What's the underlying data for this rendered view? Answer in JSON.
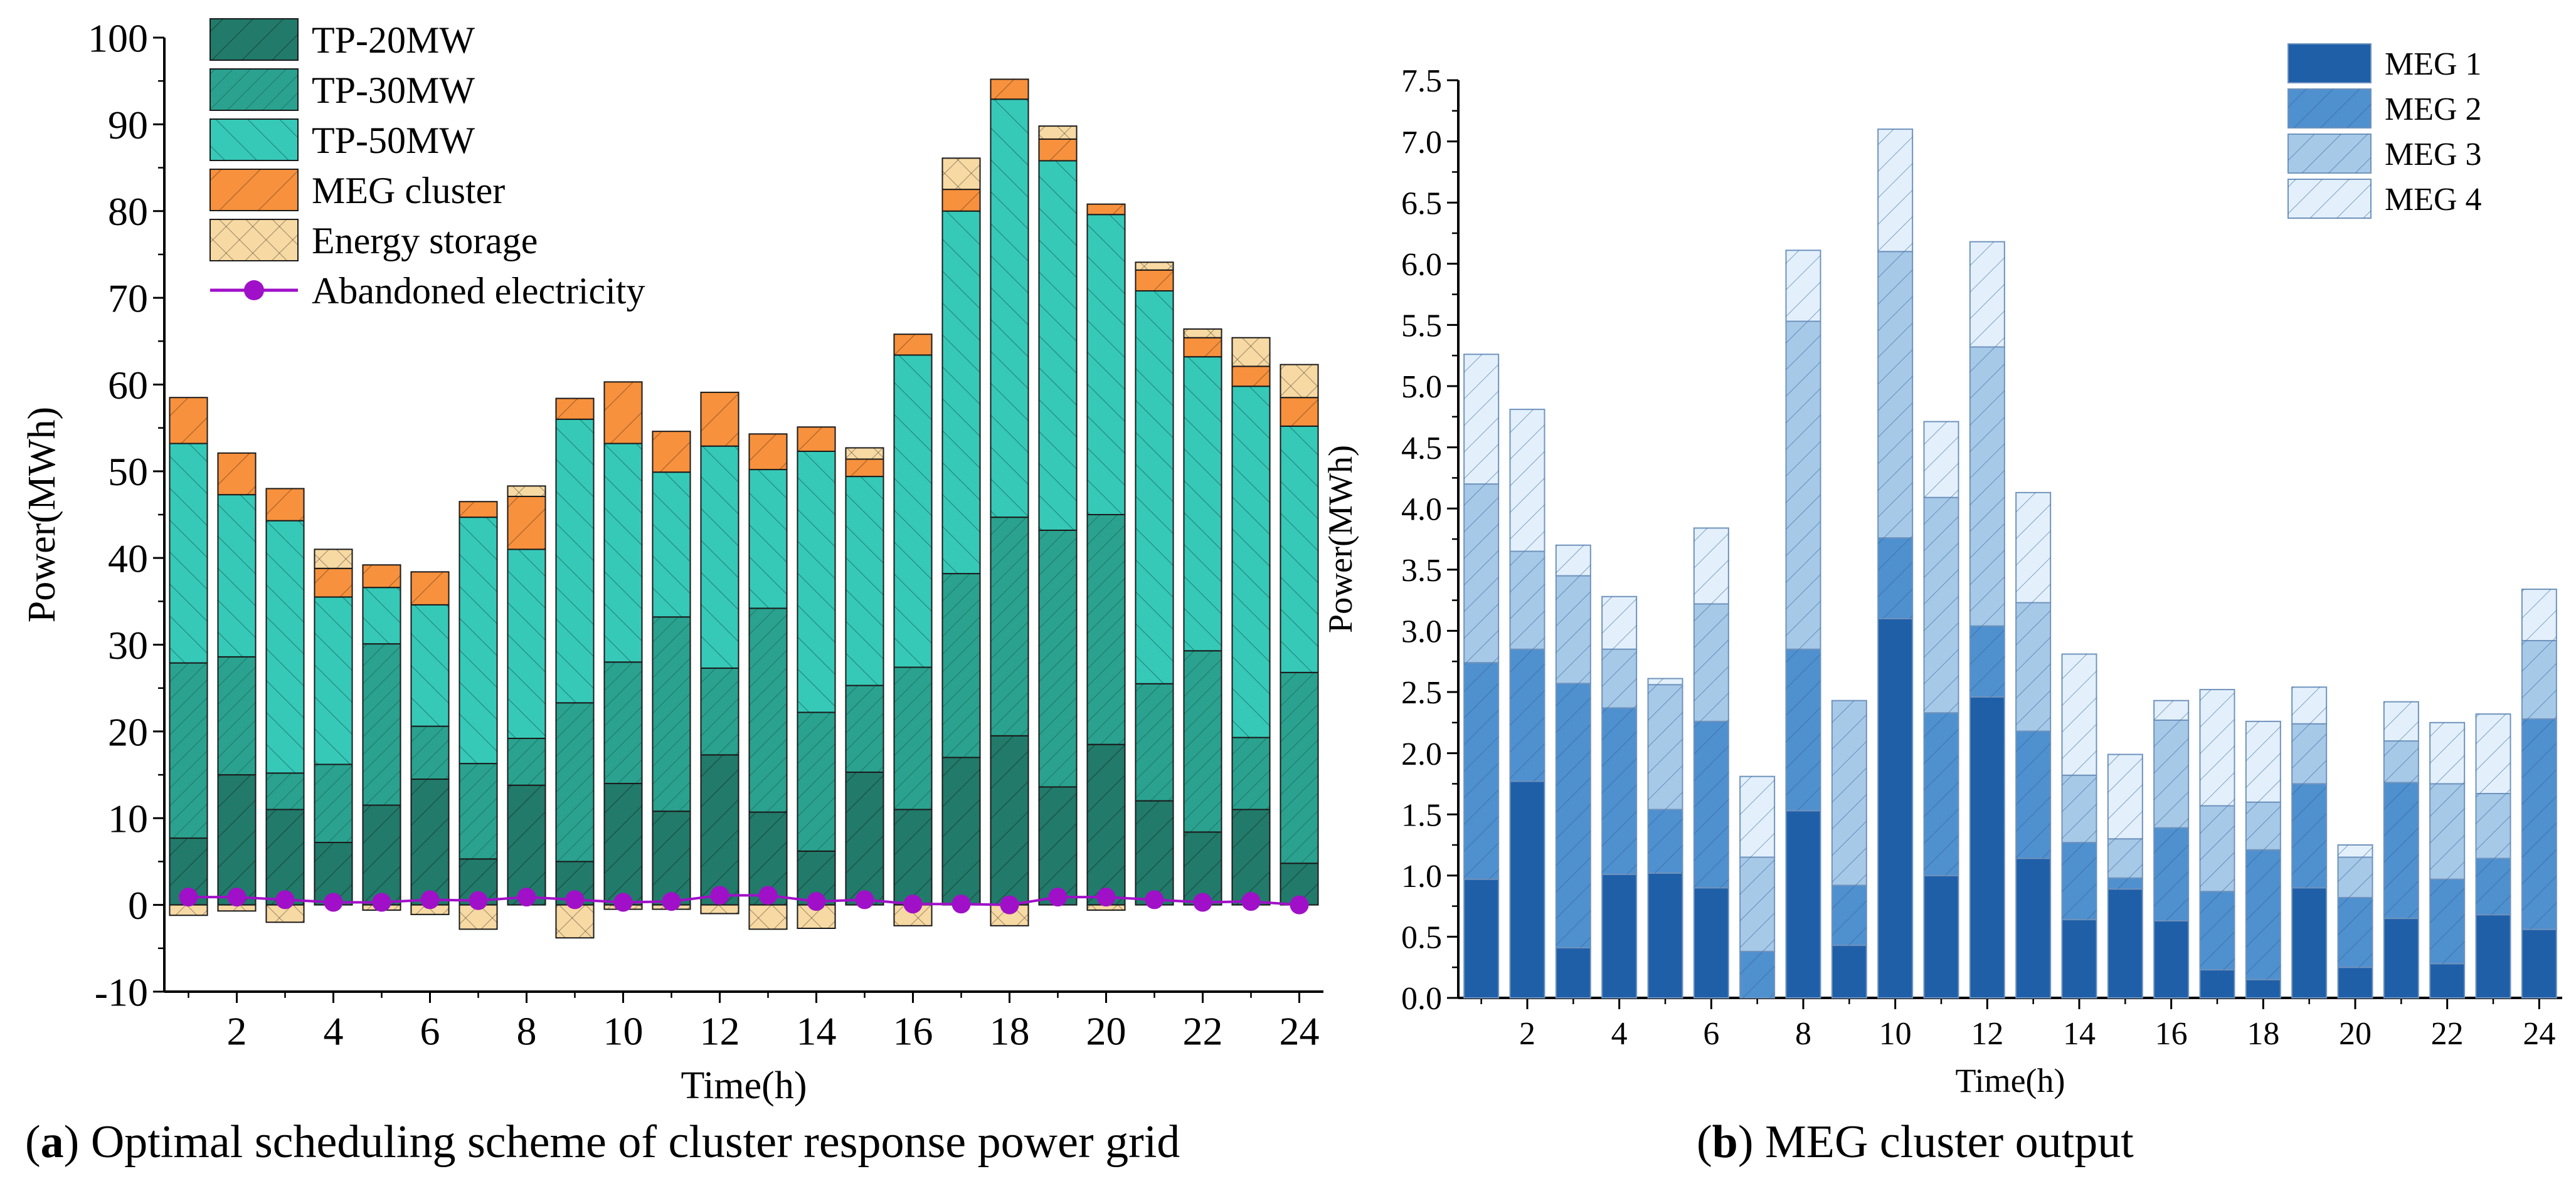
{
  "captions": {
    "a": {
      "paren_open": "(",
      "letter": "a",
      "paren_close": ")",
      "text": " Optimal scheduling scheme of cluster response power grid"
    },
    "b": {
      "paren_open": "(",
      "letter": "b",
      "paren_close": ")",
      "text": " MEG cluster output"
    }
  },
  "chart_data": [
    {
      "type": "bar",
      "stacked": true,
      "title": "",
      "xlabel": "Time(h)",
      "ylabel": "Power(MWh)",
      "ylim": [
        -10,
        100
      ],
      "yticks": [
        -10,
        0,
        10,
        20,
        30,
        40,
        50,
        60,
        70,
        80,
        90,
        100
      ],
      "xticks": [
        2,
        4,
        6,
        8,
        10,
        12,
        14,
        16,
        18,
        20,
        22,
        24
      ],
      "categories": [
        1,
        2,
        3,
        4,
        5,
        6,
        7,
        8,
        9,
        10,
        11,
        12,
        13,
        14,
        15,
        16,
        17,
        18,
        19,
        20,
        21,
        22,
        23,
        24
      ],
      "legend_position": "top-left",
      "series": [
        {
          "name": "TP-20MW",
          "color": "#227a6a",
          "hatch": "diag-right",
          "values": [
            7.7,
            15,
            11,
            7.2,
            11.5,
            14.5,
            5.3,
            13.8,
            5,
            14,
            10.8,
            17.3,
            10.7,
            6.2,
            15.3,
            11,
            17,
            19.5,
            13.6,
            18.5,
            12,
            8.4,
            11,
            4.8
          ]
        },
        {
          "name": "TP-30MW",
          "color": "#2aa28f",
          "hatch": "diag-right-dense",
          "values": [
            20.2,
            13.6,
            4.2,
            9,
            18.6,
            6.1,
            11,
            5.4,
            18.3,
            14,
            22.4,
            10,
            23.5,
            16,
            10,
            16.4,
            21.2,
            25.2,
            29.6,
            26.5,
            13.5,
            20.9,
            8.3,
            22
          ]
        },
        {
          "name": "TP-50MW",
          "color": "#36c9b8",
          "hatch": "diag-left",
          "values": [
            25.3,
            18.7,
            29.1,
            19.3,
            6.5,
            14,
            28.4,
            21.8,
            32.7,
            25.2,
            16.7,
            25.6,
            16,
            30.1,
            24.1,
            36,
            41.8,
            48.2,
            42.6,
            34.6,
            45.3,
            33.9,
            40.5,
            28.4
          ]
        },
        {
          "name": "MEG cluster",
          "color": "#f7913d",
          "hatch": "diag-right-wide",
          "values": [
            5.3,
            4.8,
            3.7,
            3.3,
            2.6,
            3.8,
            1.8,
            6.1,
            2.4,
            7.1,
            4.7,
            6.2,
            4.1,
            2.8,
            2,
            2.4,
            2.5,
            2.3,
            2.5,
            1.2,
            2.4,
            2.2,
            2.3,
            3.3
          ]
        },
        {
          "name": "Energy storage",
          "color": "#f7d9a3",
          "hatch": "cross",
          "values": [
            -1.2,
            -0.7,
            -2,
            2.2,
            -0.6,
            -1.1,
            -2.8,
            1.2,
            -3.8,
            -0.5,
            -0.5,
            -1,
            -2.8,
            -2.7,
            1.3,
            -2.4,
            3.6,
            -2.4,
            1.5,
            -0.6,
            0.9,
            1,
            3.3,
            3.8
          ]
        },
        {
          "name": "Abandoned electricity",
          "color": "#a010c8",
          "type": "line",
          "marker": "circle",
          "values": [
            0.9,
            0.9,
            0.6,
            0.3,
            0.3,
            0.6,
            0.5,
            0.9,
            0.6,
            0.3,
            0.4,
            1.1,
            1.1,
            0.4,
            0.6,
            0.1,
            0.1,
            0,
            0.9,
            0.9,
            0.6,
            0.3,
            0.4,
            0
          ]
        }
      ]
    },
    {
      "type": "bar",
      "stacked": true,
      "title": "",
      "xlabel": "Time(h)",
      "ylabel": "Power(MWh)",
      "ylim": [
        0,
        7.5
      ],
      "yticks": [
        "0.0",
        "0.5",
        "1.0",
        "1.5",
        "2.0",
        "2.5",
        "3.0",
        "3.5",
        "4.0",
        "4.5",
        "5.0",
        "5.5",
        "6.0",
        "6.5",
        "7.0",
        "7.5"
      ],
      "xticks": [
        2,
        4,
        6,
        8,
        10,
        12,
        14,
        16,
        18,
        20,
        22,
        24
      ],
      "categories": [
        1,
        2,
        3,
        4,
        5,
        6,
        7,
        8,
        9,
        10,
        11,
        12,
        13,
        14,
        15,
        16,
        17,
        18,
        19,
        20,
        21,
        22,
        23,
        24
      ],
      "legend_position": "top-right",
      "series": [
        {
          "name": "MEG 1",
          "color": "#1f5fa8",
          "hatch": "none",
          "values": [
            0.97,
            1.77,
            0.41,
            1.01,
            1.02,
            0.9,
            0,
            1.53,
            0.43,
            3.1,
            1,
            2.46,
            1.14,
            0.64,
            0.89,
            0.63,
            0.23,
            0.15,
            0.9,
            0.25,
            0.65,
            0.28,
            0.68,
            0.56
          ]
        },
        {
          "name": "MEG 2",
          "color": "#4f90cf",
          "hatch": "diag-right",
          "values": [
            1.77,
            1.08,
            2.16,
            1.36,
            0.52,
            1.36,
            0.38,
            1.32,
            0.49,
            0.66,
            1.33,
            0.58,
            1.04,
            0.63,
            0.09,
            0.76,
            0.64,
            1.06,
            0.85,
            0.57,
            1.11,
            0.69,
            0.46,
            1.72
          ]
        },
        {
          "name": "MEG 3",
          "color": "#a7c9e8",
          "hatch": "diag-right",
          "values": [
            1.46,
            0.8,
            0.88,
            0.48,
            1.02,
            0.96,
            0.77,
            2.68,
            1.51,
            2.34,
            1.76,
            2.28,
            1.05,
            0.55,
            0.32,
            0.88,
            0.7,
            0.39,
            0.49,
            0.33,
            0.34,
            0.78,
            0.53,
            0.64
          ]
        },
        {
          "name": "MEG 4",
          "color": "#e3f0fb",
          "hatch": "diag-right",
          "values": [
            1.06,
            1.16,
            0.25,
            0.43,
            0.05,
            0.62,
            0.66,
            0.58,
            0,
            1,
            0.62,
            0.86,
            0.9,
            0.99,
            0.69,
            0.16,
            0.95,
            0.66,
            0.3,
            0.1,
            0.32,
            0.5,
            0.65,
            0.42
          ]
        }
      ]
    }
  ]
}
